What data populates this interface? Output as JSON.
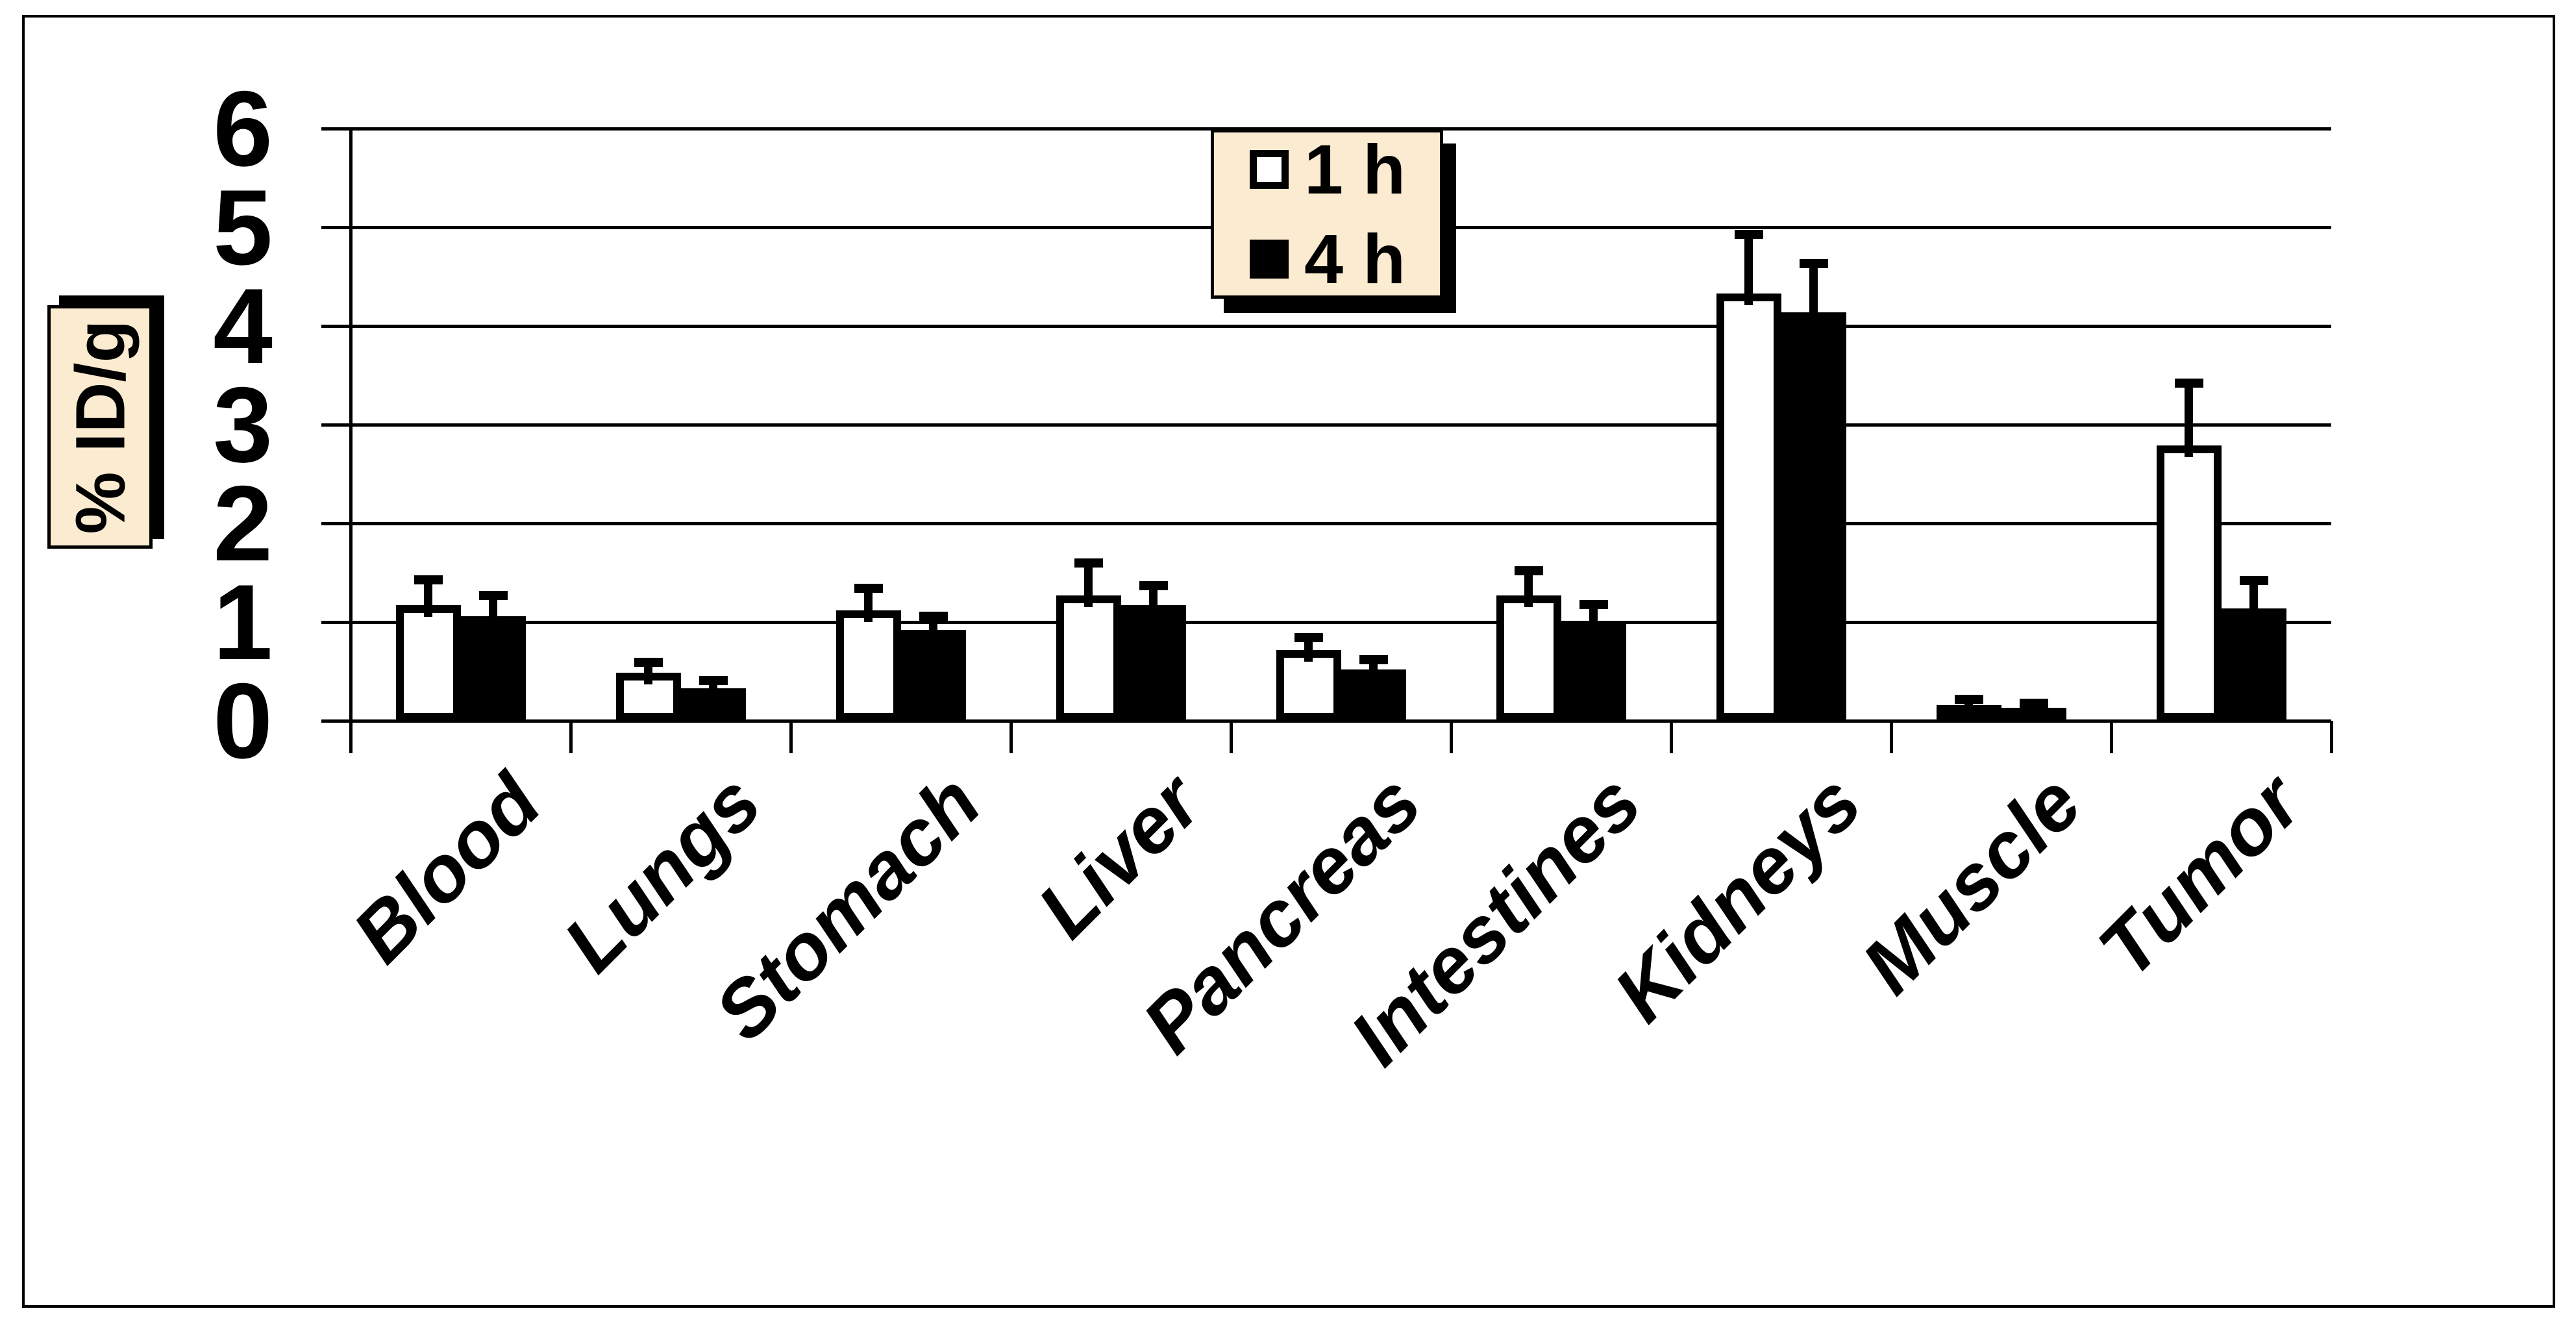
{
  "figure": {
    "background": "#ffffff",
    "border_color": "#000000",
    "panel_fill": "#FBEBD0"
  },
  "chart_data": {
    "type": "bar",
    "title": "",
    "xlabel": "",
    "ylabel": "% ID/g",
    "categories": [
      "Blood",
      "Lungs",
      "Stomach",
      "Liver",
      "Pancreas",
      "Intestines",
      "Kidneys",
      "Muscle",
      "Tumor"
    ],
    "series": [
      {
        "name": "1 h",
        "fill": "#ffffff",
        "values": [
          1.17,
          0.49,
          1.12,
          1.27,
          0.72,
          1.27,
          4.33,
          0.16,
          2.79
        ],
        "errors_upper": [
          0.26,
          0.1,
          0.22,
          0.33,
          0.12,
          0.25,
          0.6,
          0.06,
          0.63
        ]
      },
      {
        "name": "4 h",
        "fill": "#000000",
        "values": [
          1.06,
          0.33,
          0.92,
          1.17,
          0.52,
          1.01,
          4.14,
          0.13,
          1.14
        ],
        "errors_upper": [
          0.21,
          0.08,
          0.14,
          0.2,
          0.1,
          0.17,
          0.49,
          0.05,
          0.28
        ]
      }
    ],
    "ylim": [
      0,
      6
    ],
    "yticks": [
      "0",
      "1",
      "2",
      "3",
      "4",
      "5",
      "6"
    ],
    "grid": "horizontal",
    "legend_position": "top-center",
    "error_bars": "upper-only",
    "bar_outline": "#000000"
  },
  "legend": {
    "fill": "#FBEBD0",
    "items": [
      {
        "label": "1 h",
        "swatch": "white-square-icon"
      },
      {
        "label": "4 h",
        "swatch": "black-square-icon"
      }
    ]
  },
  "ylabel_box": {
    "text": "% ID/g",
    "fill": "#FBEBD0"
  }
}
